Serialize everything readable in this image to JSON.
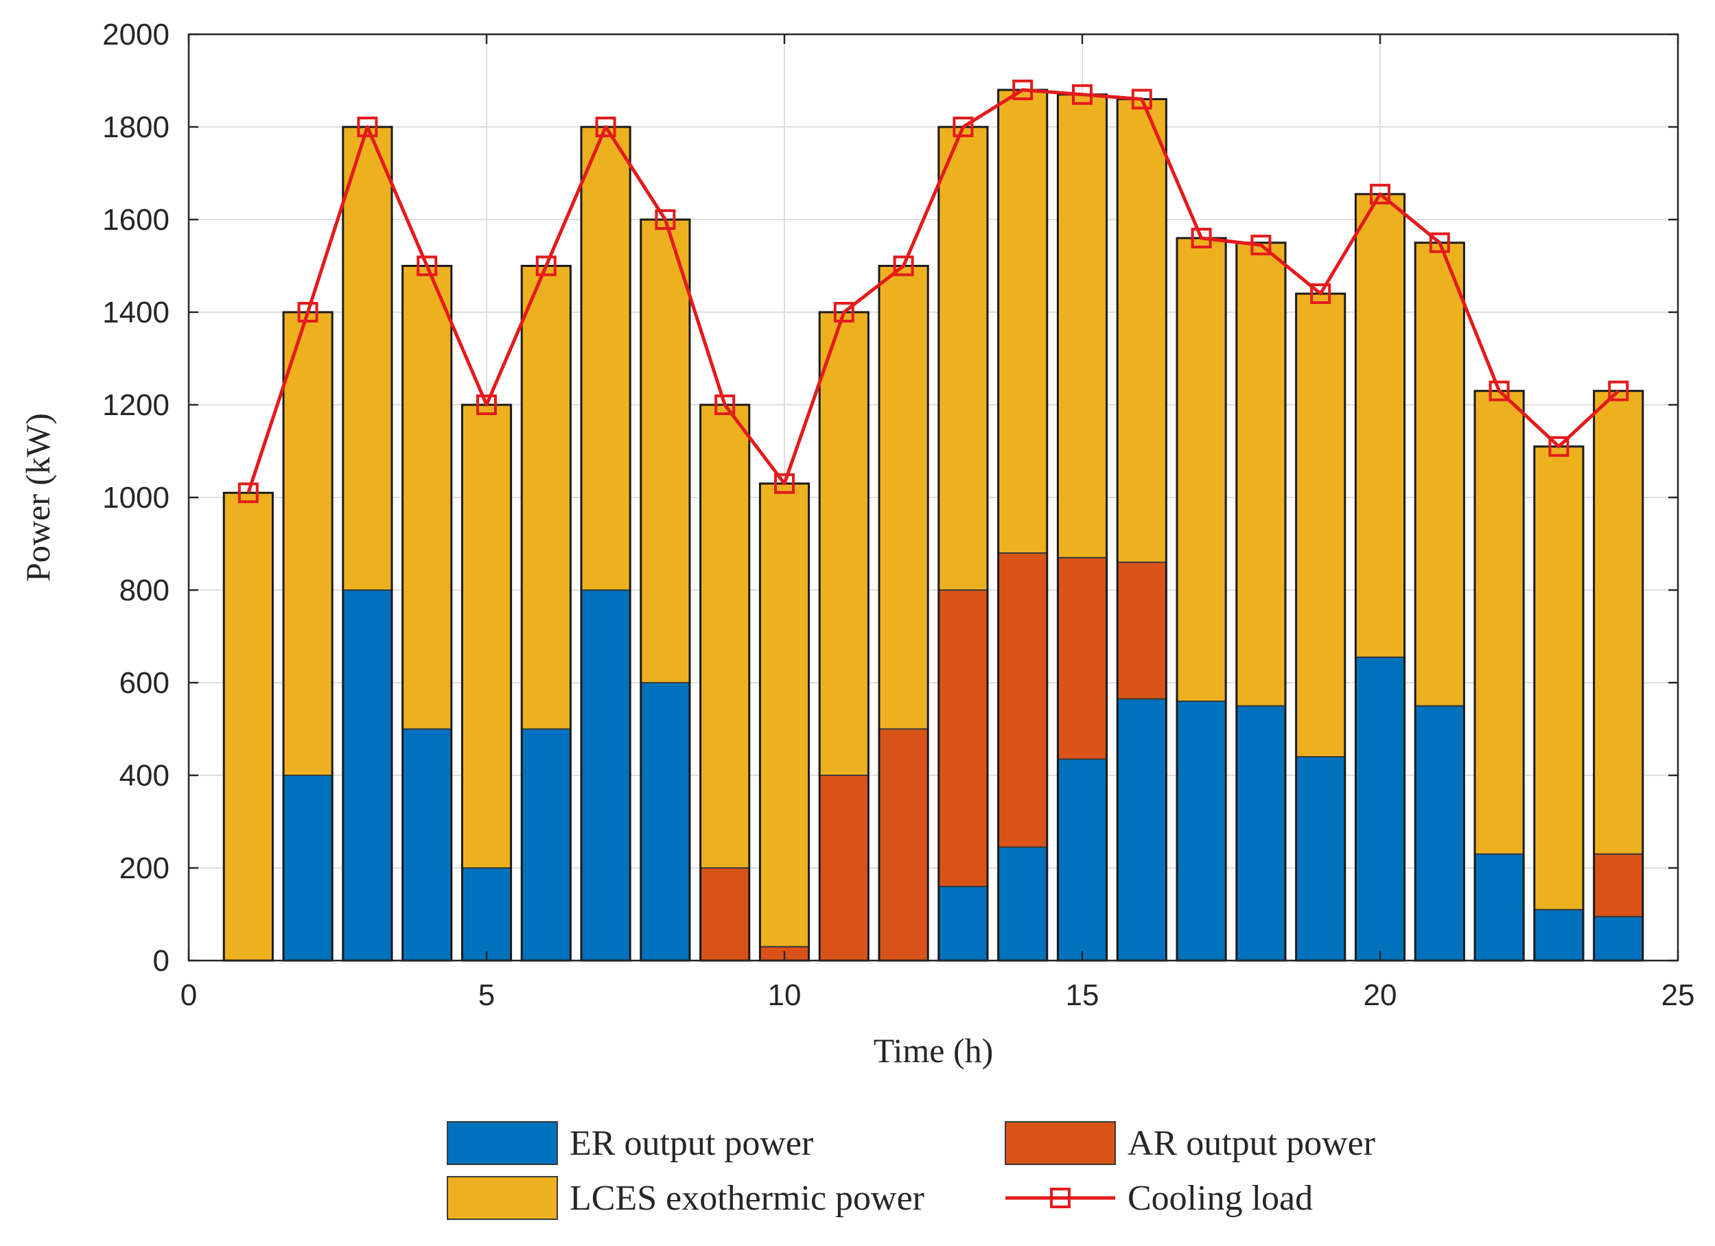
{
  "chart_data": {
    "type": "bar",
    "stacked": true,
    "title": "",
    "xlabel": "Time (h)",
    "ylabel": "Power (kW)",
    "xlim": [
      0,
      25
    ],
    "ylim": [
      0,
      2000
    ],
    "xticks": [
      0,
      5,
      10,
      15,
      20,
      25
    ],
    "yticks": [
      0,
      200,
      400,
      600,
      800,
      1000,
      1200,
      1400,
      1600,
      1800,
      2000
    ],
    "grid": true,
    "legend_position": "bottom",
    "x": [
      1,
      2,
      3,
      4,
      5,
      6,
      7,
      8,
      9,
      10,
      11,
      12,
      13,
      14,
      15,
      16,
      17,
      18,
      19,
      20,
      21,
      22,
      23,
      24
    ],
    "series": [
      {
        "name": "ER output power",
        "kind": "bar",
        "color": "#0072BD",
        "values": [
          0,
          400,
          800,
          500,
          200,
          500,
          800,
          600,
          0,
          0,
          0,
          0,
          160,
          245,
          435,
          565,
          560,
          550,
          440,
          655,
          550,
          230,
          110,
          95
        ]
      },
      {
        "name": "AR output power",
        "kind": "bar",
        "color": "#D95319",
        "values": [
          0,
          0,
          0,
          0,
          0,
          0,
          0,
          0,
          200,
          30,
          400,
          500,
          640,
          635,
          435,
          295,
          0,
          0,
          0,
          0,
          0,
          0,
          0,
          135
        ]
      },
      {
        "name": "LCES exothermic power",
        "kind": "bar",
        "color": "#EDB120",
        "values": [
          1010,
          1000,
          1000,
          1000,
          1000,
          1000,
          1000,
          1000,
          1000,
          1000,
          1000,
          1000,
          1000,
          1000,
          1000,
          1000,
          1000,
          1000,
          1000,
          1000,
          1000,
          1000,
          1000,
          1000
        ]
      },
      {
        "name": "Cooling load",
        "kind": "line",
        "marker": "square",
        "color": "#E41A1C",
        "values": [
          1010,
          1400,
          1800,
          1500,
          1200,
          1500,
          1800,
          1600,
          1200,
          1030,
          1400,
          1500,
          1800,
          1880,
          1870,
          1860,
          1560,
          1545,
          1440,
          1655,
          1550,
          1230,
          1110,
          1230
        ]
      }
    ]
  }
}
